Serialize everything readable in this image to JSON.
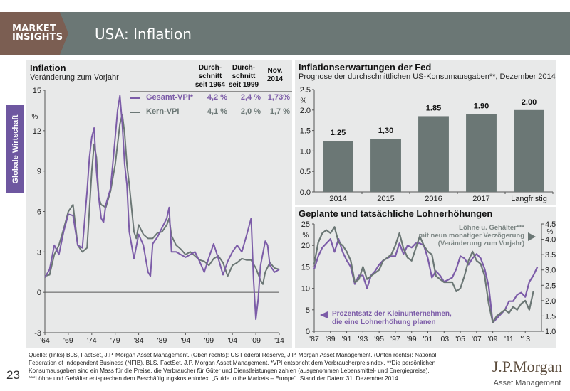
{
  "header": {
    "brand_line1": "MARKET",
    "brand_line2": "INSIGHTS",
    "title": "USA: Inflation",
    "brand_color": "#7b5e52",
    "bar_color": "#6b7775"
  },
  "side_tab": {
    "label": "Globale Wirtschaft",
    "color": "#6e57a0"
  },
  "left_panel": {
    "title": "Inflation",
    "subtitle": "Veränderung zum Vorjahr",
    "col_headers": [
      "Durch-\nschnitt\nseit 1964",
      "Durch-\nschnitt\nseit 1999",
      "Nov.\n2014"
    ],
    "legend": [
      {
        "name": "Gesamt-VPI*",
        "values": [
          "4,2 %",
          "2,4 %",
          "1,73%"
        ],
        "color": "#7c5ca8"
      },
      {
        "name": "Kern-VPI",
        "values": [
          "4,1 %",
          "2,0 %",
          "1,7 %"
        ],
        "color": "#6b7775"
      }
    ]
  },
  "top_right_panel": {
    "title": "Inflationserwartungen der Fed",
    "subtitle": "Prognose der durchschnittlichen US-Konsumausgaben**, Dezember 2014"
  },
  "bottom_right_panel": {
    "title": "Geplante und tatsächliche Lohnerhöhungen",
    "right_note": [
      "Löhne u. Gehälter***",
      "mit neun monatiger Verzögerung",
      "(Veränderung zum Vorjahr)"
    ],
    "left_note": [
      "Prozentsatz der Kleinunternehmen,",
      "die eine Lohnerhöhung planen"
    ]
  },
  "chart_data": [
    {
      "type": "line",
      "title": "Inflation",
      "ylabel": "%",
      "ylim": [
        -3,
        15
      ],
      "yticks": [
        "15",
        "12",
        "9",
        "6",
        "3",
        "0",
        "-3"
      ],
      "ytick_values": [
        15,
        12,
        9,
        6,
        3,
        0,
        -3
      ],
      "xlim": [
        1964,
        2014
      ],
      "xticks": [
        "'64",
        "'69",
        "'74",
        "'79",
        "'84",
        "'89",
        "'94",
        "'99",
        "'04",
        "'09",
        "'14"
      ],
      "xtick_values": [
        1964,
        1969,
        1974,
        1979,
        1984,
        1989,
        1994,
        1999,
        2004,
        2009,
        2014
      ],
      "series": [
        {
          "name": "Gesamt-VPI",
          "color": "#7c5ca8",
          "x": [
            1964,
            1965,
            1966,
            1967,
            1968,
            1969,
            1970,
            1971,
            1972,
            1973,
            1973.5,
            1974,
            1974.5,
            1975,
            1975.5,
            1976,
            1976.5,
            1977,
            1978,
            1979,
            1979.5,
            1980,
            1980.5,
            1981,
            1981.5,
            1982,
            1982.5,
            1983,
            1984,
            1985,
            1986,
            1986.5,
            1987,
            1988,
            1989,
            1990,
            1990.5,
            1991,
            1992,
            1993,
            1994,
            1995,
            1996,
            1997,
            1998,
            1999,
            2000,
            2001,
            2002,
            2003,
            2004,
            2005,
            2006,
            2007,
            2008,
            2008.5,
            2009,
            2009.5,
            2010,
            2011,
            2011.5,
            2012,
            2013,
            2014
          ],
          "values": [
            1.1,
            1.7,
            3.5,
            2.8,
            4.5,
            5.8,
            5.7,
            3.5,
            3.3,
            7.5,
            10.0,
            11.5,
            12.2,
            9.0,
            7.0,
            5.5,
            5.2,
            6.5,
            7.7,
            11.5,
            13.5,
            14.6,
            12.5,
            9.5,
            8.0,
            4.5,
            3.5,
            2.5,
            4.3,
            3.5,
            1.5,
            1.2,
            3.6,
            4.1,
            4.8,
            5.5,
            6.3,
            3.0,
            3.0,
            2.8,
            2.6,
            2.8,
            3.0,
            2.3,
            1.5,
            2.6,
            3.6,
            2.5,
            1.3,
            2.3,
            3.0,
            3.5,
            3.0,
            4.2,
            5.5,
            1.0,
            -2.0,
            -0.5,
            2.0,
            3.8,
            3.5,
            2.0,
            1.5,
            1.7
          ]
        },
        {
          "name": "Kern-VPI",
          "color": "#6b7775",
          "x": [
            1964,
            1965,
            1966,
            1967,
            1968,
            1969,
            1970,
            1971,
            1972,
            1973,
            1974,
            1974.5,
            1975,
            1975.5,
            1976,
            1977,
            1978,
            1979,
            1980,
            1980.5,
            1981,
            1981.5,
            1982,
            1983,
            1983.5,
            1984,
            1985,
            1986,
            1987,
            1988,
            1989,
            1990,
            1990.5,
            1991,
            1992,
            1993,
            1994,
            1995,
            1996,
            1997,
            1998,
            1999,
            2000,
            2001,
            2002,
            2003,
            2004,
            2005,
            2006,
            2007,
            2008,
            2009,
            2010,
            2010.5,
            2011,
            2012,
            2013,
            2014
          ],
          "values": [
            1.2,
            1.3,
            2.8,
            3.5,
            4.7,
            6.0,
            6.5,
            3.5,
            3.0,
            3.3,
            9.0,
            11.0,
            10.0,
            7.0,
            6.5,
            6.3,
            7.5,
            9.5,
            12.5,
            13.2,
            11.8,
            9.5,
            8.0,
            4.5,
            4.0,
            5.0,
            4.3,
            4.0,
            4.0,
            4.4,
            4.5,
            5.0,
            5.5,
            4.2,
            3.5,
            3.2,
            2.8,
            3.0,
            2.7,
            2.4,
            2.3,
            2.0,
            2.5,
            2.7,
            2.2,
            1.2,
            2.0,
            2.2,
            2.5,
            2.4,
            2.4,
            1.8,
            0.9,
            0.6,
            1.5,
            2.2,
            1.8,
            1.7
          ]
        }
      ]
    },
    {
      "type": "bar",
      "title": "Inflationserwartungen der Fed",
      "ylabel": "%",
      "ylim": [
        0,
        2.5
      ],
      "yticks": [
        "0.0",
        "0.5",
        "1.0",
        "1.5",
        "2.0",
        "2.5"
      ],
      "ytick_values": [
        0,
        0.5,
        1.0,
        1.5,
        2.0,
        2.5
      ],
      "categories": [
        "2014",
        "2015",
        "2016",
        "2017",
        "Langfristig"
      ],
      "values": [
        1.25,
        1.3,
        1.85,
        1.9,
        2.0
      ],
      "data_labels": [
        "1.25",
        "1,30",
        "1.85",
        "1.90",
        "2.00"
      ],
      "color": "#6b7775"
    },
    {
      "type": "line",
      "title": "Geplante und tatsächliche Lohnerhöhungen",
      "xlim": [
        1987,
        2015
      ],
      "xticks": [
        "'87",
        "'89",
        "'91",
        "'93",
        "'95",
        "'97",
        "'99",
        "'01",
        "'03",
        "'05",
        "'07",
        "'09",
        "'11",
        "'13"
      ],
      "xtick_values": [
        1987,
        1989,
        1991,
        1993,
        1995,
        1997,
        1999,
        2001,
        2003,
        2005,
        2007,
        2009,
        2011,
        2013
      ],
      "left_axis": {
        "label": "%",
        "ylim": [
          0,
          25
        ],
        "yticks": [
          "0",
          "5",
          "10",
          "15",
          "20",
          "25"
        ],
        "ytick_values": [
          0,
          5,
          10,
          15,
          20,
          25
        ]
      },
      "right_axis": {
        "label": "%",
        "ylim": [
          1.0,
          4.5
        ],
        "yticks": [
          "1.0",
          "1.5",
          "2.0",
          "2.5",
          "3.0",
          "3.5",
          "4.0",
          "4.5"
        ],
        "ytick_values": [
          1.0,
          1.5,
          2.0,
          2.5,
          3.0,
          3.5,
          4.0,
          4.5
        ]
      },
      "series": [
        {
          "name": "Prozentsatz der Kleinunternehmen, die eine Lohnerhöhung planen",
          "axis": "left",
          "color": "#7c5ca8",
          "x": [
            1987,
            1987.5,
            1988,
            1988.5,
            1989,
            1989.5,
            1990,
            1990.5,
            1991,
            1991.5,
            1992,
            1992.5,
            1993,
            1993.5,
            1994,
            1994.5,
            1995,
            1995.5,
            1996,
            1996.5,
            1997,
            1997.5,
            1998,
            1998.5,
            1999,
            1999.5,
            2000,
            2000.5,
            2001,
            2001.5,
            2002,
            2002.5,
            2003,
            2003.5,
            2004,
            2004.5,
            2005,
            2005.5,
            2006,
            2006.5,
            2007,
            2007.5,
            2008,
            2008.5,
            2009,
            2009.5,
            2010,
            2010.5,
            2011,
            2011.5,
            2012,
            2012.5,
            2013,
            2013.5,
            2014,
            2014.5
          ],
          "values": [
            14.5,
            17.5,
            19.5,
            20.5,
            21.5,
            18.5,
            21.5,
            18.5,
            16.5,
            15.0,
            11.0,
            13.0,
            13.0,
            10.0,
            13.0,
            14.0,
            15.5,
            16.5,
            17.0,
            17.5,
            17.5,
            20.5,
            18.0,
            20.0,
            19.5,
            20.5,
            20.5,
            20.0,
            17.0,
            12.5,
            14.0,
            13.0,
            11.5,
            12.0,
            12.5,
            14.5,
            17.5,
            17.0,
            15.5,
            17.0,
            18.0,
            17.0,
            14.5,
            10.5,
            2.0,
            3.0,
            4.0,
            5.0,
            7.0,
            7.0,
            8.5,
            9.0,
            8.0,
            11.5,
            13.0,
            15.0
          ]
        },
        {
          "name": "Löhne u. Gehälter (Beschäftigungskostenindex), 9 Monate verzögert",
          "axis": "right",
          "color": "#6b7775",
          "x": [
            1987,
            1987.5,
            1988,
            1988.5,
            1989,
            1989.5,
            1990,
            1990.5,
            1991,
            1991.5,
            1992,
            1992.5,
            1993,
            1993.5,
            1994,
            1994.5,
            1995,
            1995.5,
            1996,
            1996.5,
            1997,
            1997.5,
            1998,
            1998.5,
            1999,
            1999.5,
            2000,
            2000.5,
            2001,
            2001.5,
            2002,
            2002.5,
            2003,
            2003.5,
            2004,
            2004.5,
            2005,
            2005.5,
            2006,
            2006.5,
            2007,
            2007.5,
            2008,
            2008.5,
            2009,
            2009.5,
            2010,
            2010.5,
            2011,
            2011.5,
            2012,
            2012.5,
            2013,
            2013.5,
            2014
          ],
          "values": [
            3.2,
            3.9,
            4.2,
            4.3,
            4.2,
            4.4,
            3.9,
            3.8,
            3.6,
            3.3,
            2.6,
            2.7,
            3.1,
            2.7,
            2.8,
            2.9,
            3.0,
            3.3,
            3.4,
            3.5,
            3.8,
            4.2,
            3.7,
            3.4,
            3.3,
            3.7,
            4.1,
            3.8,
            3.6,
            3.5,
            2.8,
            2.7,
            2.6,
            2.6,
            2.6,
            2.3,
            2.4,
            2.8,
            3.3,
            3.6,
            3.3,
            3.2,
            2.8,
            1.9,
            1.3,
            1.5,
            1.6,
            1.7,
            1.6,
            1.8,
            1.7,
            1.9,
            2.0,
            1.7,
            2.3
          ]
        }
      ]
    }
  ],
  "footer": {
    "source_lines": [
      "Quelle: (links) BLS, FactSet, J.P. Morgan Asset Management. (Oben rechts): US Federal Reserve, J.P. Morgan Asset Management. (Unten rechts): National",
      "Federation of Independent Business (NFIB), BLS, FactSet, J.P. Morgan Asset Management. *VPI entspricht dem Verbraucherpreisindex. **Die persönlichen",
      "Konsumausgaben sind ein Mass für die Preise, die Verbraucher für Güter und Dienstleistungen zahlen (ausgenommen Lebensmittel- und Energiepreise).",
      "***Löhne und Gehälter entsprechen dem Beschäftigungskostenindex. „Guide to the Markets – Europe\". Stand der Daten: 31. Dezember 2014."
    ],
    "page_number": "23",
    "logo_name": "J.P.Morgan",
    "logo_sub": "Asset Management"
  }
}
